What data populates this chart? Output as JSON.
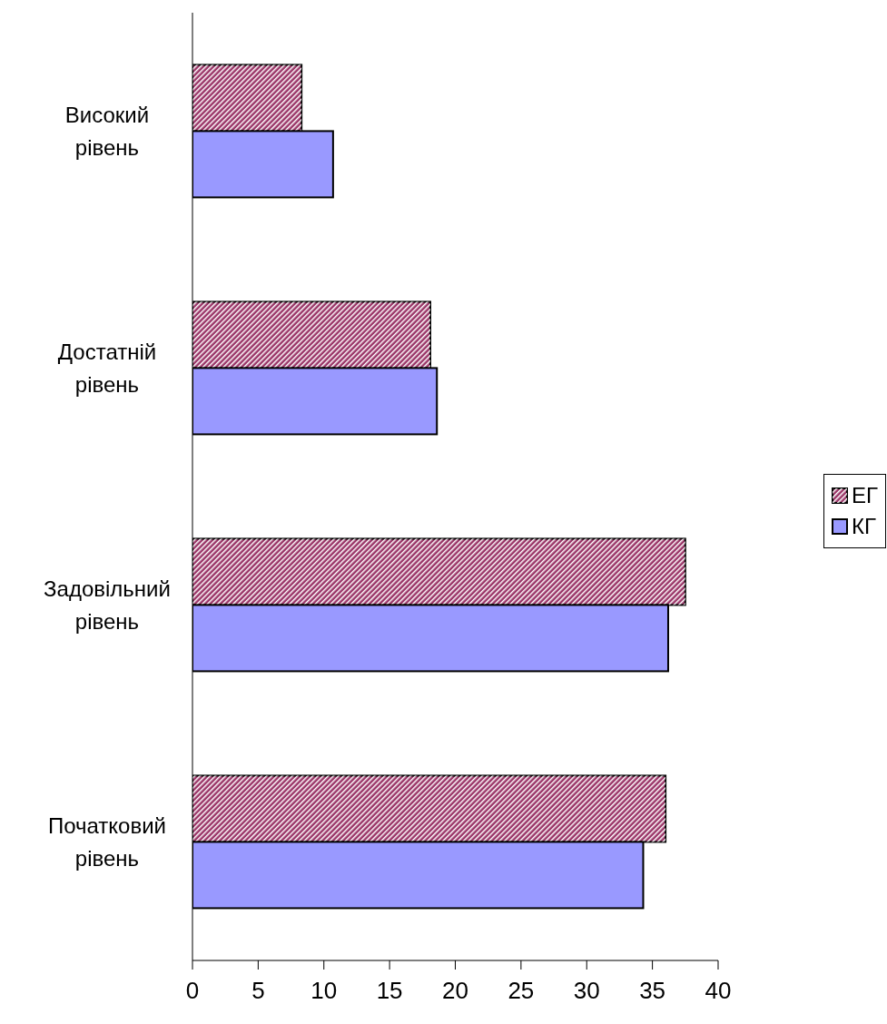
{
  "chart_data": {
    "type": "bar",
    "orientation": "horizontal",
    "categories": [
      "Високий рівень",
      "Достатній рівень",
      "Задовільний рівень",
      "Початковий рівень"
    ],
    "series": [
      {
        "name": "ЕГ",
        "color": "#993366",
        "values": [
          8.3,
          18.1,
          37.5,
          36.0
        ]
      },
      {
        "name": "КГ",
        "color": "#9999ff",
        "values": [
          10.7,
          18.6,
          36.2,
          34.3
        ]
      }
    ],
    "xlim": [
      0,
      40
    ],
    "xticks": [
      0,
      5,
      10,
      15,
      20,
      25,
      30,
      35,
      40
    ],
    "grid": false,
    "legend": "right"
  }
}
